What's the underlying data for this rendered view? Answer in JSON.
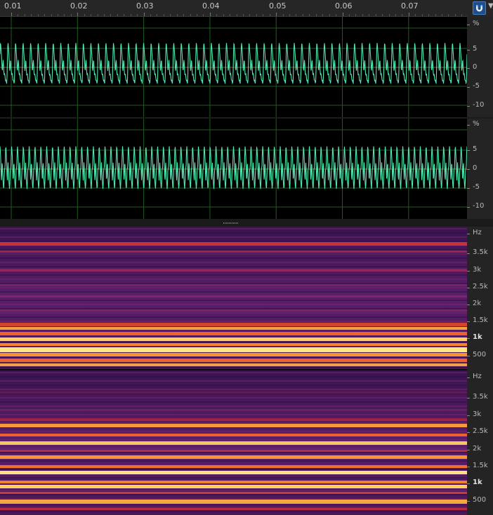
{
  "timeline": {
    "ticks": [
      "0.01",
      "0.02",
      "0.03",
      "0.04",
      "0.05",
      "0.06",
      "0.07"
    ]
  },
  "toolbar": {
    "snap_icon": "magnet-icon",
    "menu_icon": "chevron-down-icon"
  },
  "waveform_ruler": {
    "unit": "%",
    "labels": [
      "5",
      "0",
      "-5",
      "-10"
    ]
  },
  "spectral_ruler": {
    "unit": "Hz",
    "labels": [
      "3.5k",
      "3k",
      "2.5k",
      "2k",
      "1.5k",
      "1k",
      "500"
    ]
  },
  "colors": {
    "waveform": "#4fe7b0",
    "waveform_bg": "#000000",
    "grid": "#1f5a1f",
    "center_line": "#8a5a2a",
    "accent": "#1e4f8a"
  }
}
